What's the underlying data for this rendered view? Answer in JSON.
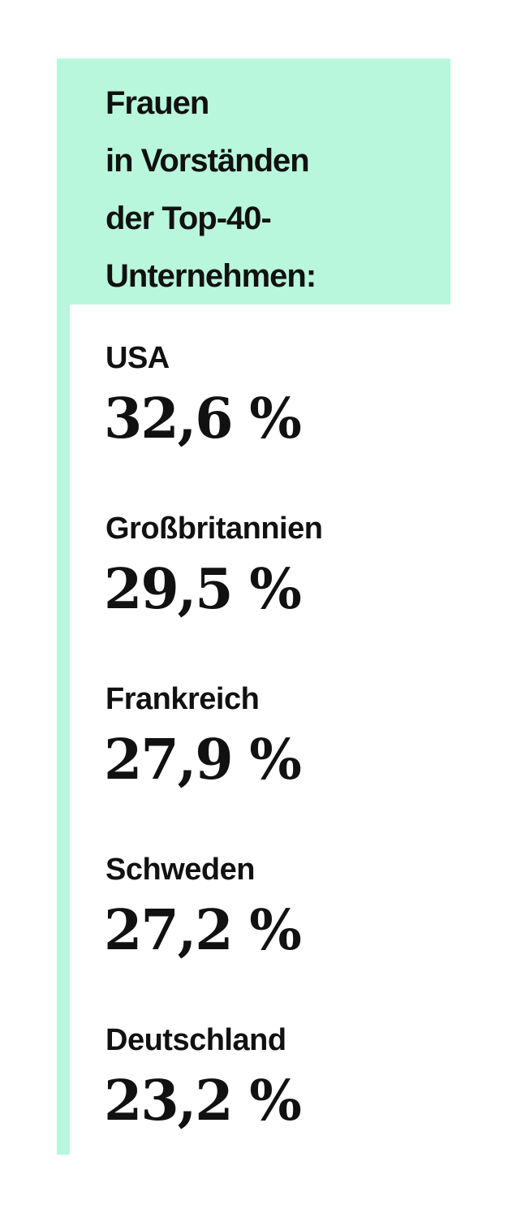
{
  "header": {
    "title_lines": [
      "Frauen",
      "in Vorständen",
      "der Top-40-",
      "Unternehmen:"
    ]
  },
  "items": [
    {
      "country": "USA",
      "value": "32,6 %"
    },
    {
      "country": "Großbritannien",
      "value": "29,5 %"
    },
    {
      "country": "Frankreich",
      "value": "27,9 %"
    },
    {
      "country": "Schweden",
      "value": "27,2 %"
    },
    {
      "country": "Deutschland",
      "value": "23,2 %"
    }
  ]
}
